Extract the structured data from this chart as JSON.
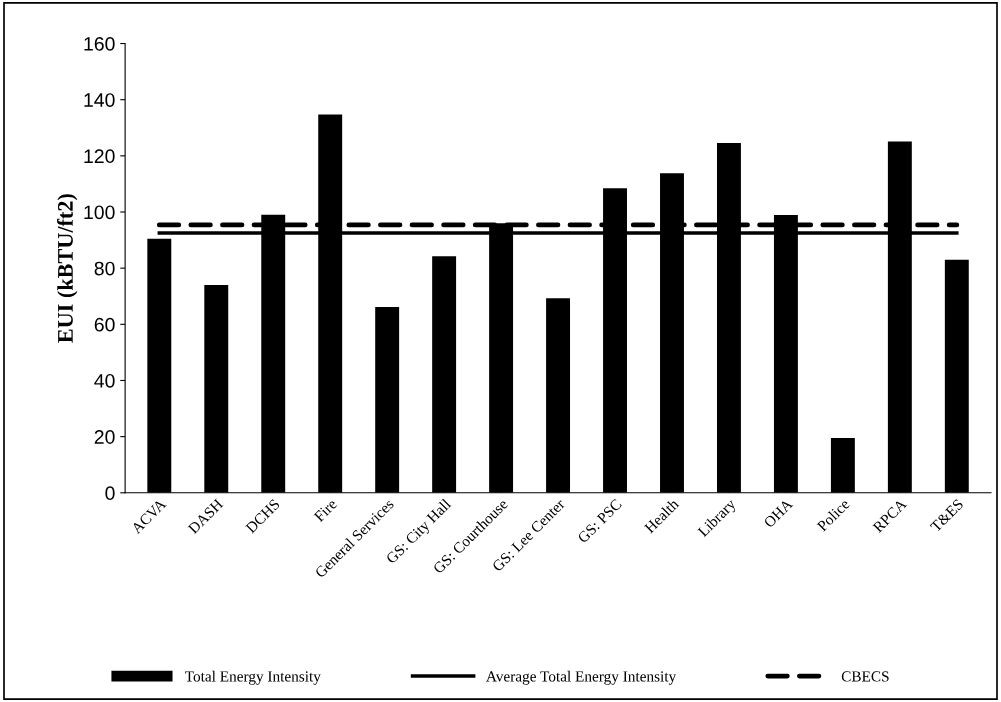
{
  "chart_data": {
    "type": "bar",
    "ylabel": "EUI (kBTU/ft2)",
    "categories": [
      "ACVA",
      "DASH",
      "DCHS",
      "Fire",
      "General Services",
      "GS: City Hall",
      "GS: Courthouse",
      "GS: Lee Center",
      "GS: PSC",
      "Health",
      "Library",
      "OHA",
      "Police",
      "RPCA",
      "T&ES"
    ],
    "series": [
      {
        "name": "Total Energy Intensity",
        "color": "#000000",
        "values": [
          90.5,
          74,
          99,
          134.7,
          66.2,
          84.2,
          96,
          69.3,
          108.5,
          113.8,
          124.6,
          98.9,
          19.5,
          125.1,
          83
        ]
      },
      {
        "name": "Average Total Energy Intensity",
        "type": "line",
        "line_style": "solid",
        "color": "#000000",
        "values": [
          92.5,
          92.5,
          92.5,
          92.5,
          92.5,
          92.5,
          92.5,
          92.5,
          92.5,
          92.5,
          92.5,
          92.5,
          92.5,
          92.5,
          92.5
        ]
      },
      {
        "name": "CBECS",
        "type": "line",
        "line_style": "dashed",
        "color": "#000000",
        "values": [
          95.4,
          95.4,
          95.4,
          95.4,
          95.4,
          95.4,
          95.4,
          95.4,
          95.4,
          95.4,
          95.4,
          95.4,
          95.4,
          95.4,
          95.4
        ]
      }
    ],
    "ylim": [
      0,
      160
    ],
    "yticks": [
      0,
      20,
      40,
      60,
      80,
      100,
      120,
      140,
      160
    ],
    "grid": false,
    "legend": "bottom",
    "marker": "none"
  }
}
